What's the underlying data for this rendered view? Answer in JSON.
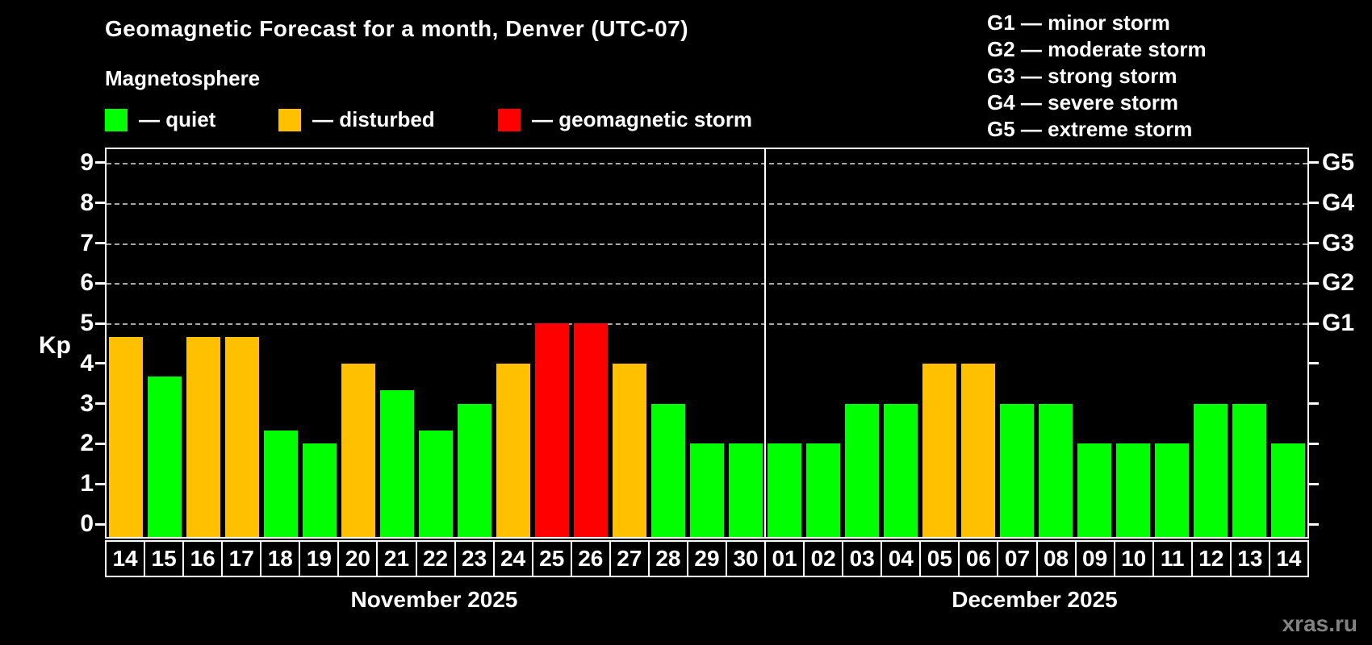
{
  "header": {
    "title": "Geomagnetic Forecast for a month, Denver (UTC-07)",
    "subtitle": "Magnetosphere"
  },
  "status_legend": {
    "items": [
      {
        "name": "quiet",
        "label": "— quiet",
        "color": "#00ff00"
      },
      {
        "name": "disturbed",
        "label": "— disturbed",
        "color": "#ffc000"
      },
      {
        "name": "storm",
        "label": "— geomagnetic storm",
        "color": "#ff0000"
      }
    ]
  },
  "g_legend": {
    "items": [
      "G1 — minor storm",
      "G2 — moderate storm",
      "G3 — strong storm",
      "G4 — severe storm",
      "G5 — extreme storm"
    ]
  },
  "axes": {
    "y_label": "Kp",
    "y_ticks": [
      0,
      1,
      2,
      3,
      4,
      5,
      6,
      7,
      8,
      9
    ],
    "right_labels": [
      {
        "label": "G1",
        "kp": 5
      },
      {
        "label": "G2",
        "kp": 6
      },
      {
        "label": "G3",
        "kp": 7
      },
      {
        "label": "G4",
        "kp": 8
      },
      {
        "label": "G5",
        "kp": 9
      }
    ]
  },
  "watermark": "xras.ru",
  "chart_data": {
    "type": "bar",
    "title": "Geomagnetic Forecast for a month, Denver (UTC-07)",
    "ylabel": "Kp",
    "ylim": [
      0,
      9
    ],
    "grid": "dashed horizontal lines at Kp 5-9 (G1-G5)",
    "legend_position": "top-left and top-right",
    "status_colors": {
      "quiet": "#00ff00",
      "disturbed": "#ffc000",
      "storm": "#ff0000"
    },
    "months": [
      {
        "label": "November 2025",
        "days": [
          "14",
          "15",
          "16",
          "17",
          "18",
          "19",
          "20",
          "21",
          "22",
          "23",
          "24",
          "25",
          "26",
          "27",
          "28",
          "29",
          "30"
        ],
        "values": [
          4.67,
          3.67,
          4.67,
          4.67,
          2.33,
          2,
          4,
          3.33,
          2.33,
          3,
          4,
          5,
          5,
          4,
          3,
          2,
          2
        ],
        "statuses": [
          "disturbed",
          "quiet",
          "disturbed",
          "disturbed",
          "quiet",
          "quiet",
          "disturbed",
          "quiet",
          "quiet",
          "quiet",
          "disturbed",
          "storm",
          "storm",
          "disturbed",
          "quiet",
          "quiet",
          "quiet"
        ]
      },
      {
        "label": "December 2025",
        "days": [
          "01",
          "02",
          "03",
          "04",
          "05",
          "06",
          "07",
          "08",
          "09",
          "10",
          "11",
          "12",
          "13",
          "14"
        ],
        "values": [
          2,
          2,
          3,
          3,
          4,
          4,
          3,
          3,
          2,
          2,
          2,
          3,
          3,
          2
        ],
        "statuses": [
          "quiet",
          "quiet",
          "quiet",
          "quiet",
          "disturbed",
          "disturbed",
          "quiet",
          "quiet",
          "quiet",
          "quiet",
          "quiet",
          "quiet",
          "quiet",
          "quiet"
        ]
      }
    ]
  }
}
